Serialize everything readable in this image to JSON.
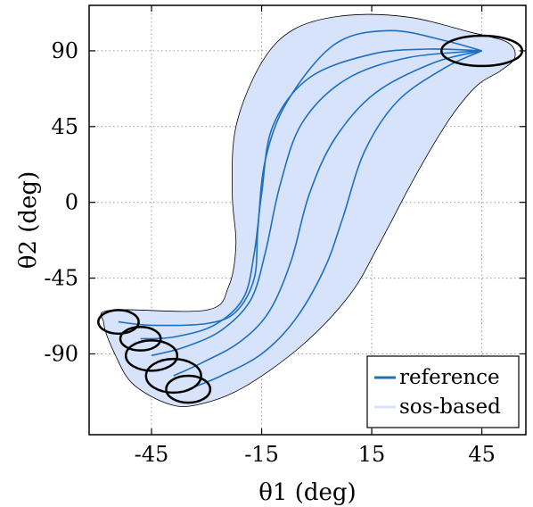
{
  "chart_data": {
    "type": "line",
    "xlabel": "θ1 (deg)",
    "ylabel": "θ2 (deg)",
    "xlim": [
      -62,
      57
    ],
    "ylim": [
      -138,
      117
    ],
    "x_ticks": [
      -45,
      -15,
      15,
      45
    ],
    "y_ticks": [
      90,
      45,
      0,
      -45,
      -90
    ],
    "x_tick_labels": [
      "-45",
      "-15",
      "15",
      "45"
    ],
    "y_tick_labels": [
      "90",
      "45",
      "0",
      "-45",
      "-90"
    ],
    "grid": true,
    "legend_position": "bottom-right",
    "colors": {
      "reference": "#1f6fbf",
      "band_fill": "#d6e3fb",
      "band_edge": "#000000",
      "circle": "#000000",
      "grid": "#9a9a9a"
    },
    "legend": [
      "reference",
      "sos-based"
    ],
    "series": [
      {
        "name": "reference",
        "points": [
          [
            -54,
            -71
          ],
          [
            -45,
            -73
          ],
          [
            -30,
            -72
          ],
          [
            -22,
            -65
          ],
          [
            -17,
            -45
          ],
          [
            -16,
            -15
          ],
          [
            -14,
            25
          ],
          [
            -8,
            60
          ],
          [
            5,
            94
          ],
          [
            20,
            102
          ],
          [
            35,
            96
          ],
          [
            45,
            90
          ]
        ]
      },
      {
        "name": "reference",
        "points": [
          [
            -48,
            -81
          ],
          [
            -39,
            -80
          ],
          [
            -28,
            -73
          ],
          [
            -20,
            -57
          ],
          [
            -17,
            -30
          ],
          [
            -15,
            5
          ],
          [
            -12,
            45
          ],
          [
            -2,
            74
          ],
          [
            15,
            88
          ],
          [
            30,
            91
          ],
          [
            45,
            90
          ]
        ]
      },
      {
        "name": "reference",
        "points": [
          [
            -45,
            -91
          ],
          [
            -36,
            -86
          ],
          [
            -26,
            -76
          ],
          [
            -18,
            -58
          ],
          [
            -14,
            -30
          ],
          [
            -10,
            10
          ],
          [
            -4,
            47
          ],
          [
            8,
            73
          ],
          [
            25,
            86
          ],
          [
            45,
            90
          ]
        ]
      },
      {
        "name": "reference",
        "points": [
          [
            -39,
            -103
          ],
          [
            -31,
            -95
          ],
          [
            -21,
            -83
          ],
          [
            -13,
            -65
          ],
          [
            -7,
            -35
          ],
          [
            -2,
            5
          ],
          [
            5,
            38
          ],
          [
            16,
            65
          ],
          [
            32,
            83
          ],
          [
            45,
            90
          ]
        ]
      },
      {
        "name": "reference",
        "points": [
          [
            -35,
            -111
          ],
          [
            -26,
            -103
          ],
          [
            -15,
            -90
          ],
          [
            -6,
            -70
          ],
          [
            2,
            -40
          ],
          [
            7,
            -10
          ],
          [
            13,
            30
          ],
          [
            22,
            60
          ],
          [
            35,
            80
          ],
          [
            45,
            90
          ]
        ]
      }
    ],
    "band": {
      "name": "sos-based",
      "outline": [
        [
          -56,
          -64
        ],
        [
          -30,
          -64
        ],
        [
          -24,
          -50
        ],
        [
          -22,
          -25
        ],
        [
          -23,
          5
        ],
        [
          -22,
          45
        ],
        [
          -15,
          83
        ],
        [
          -6,
          103
        ],
        [
          8,
          111
        ],
        [
          25,
          110
        ],
        [
          42,
          101
        ],
        [
          52,
          95
        ],
        [
          54,
          86
        ],
        [
          50,
          78
        ],
        [
          44,
          70
        ],
        [
          38,
          55
        ],
        [
          32,
          35
        ],
        [
          25,
          8
        ],
        [
          17,
          -25
        ],
        [
          9,
          -55
        ],
        [
          -4,
          -85
        ],
        [
          -20,
          -110
        ],
        [
          -32,
          -120
        ],
        [
          -40,
          -120
        ],
        [
          -50,
          -108
        ],
        [
          -55,
          -90
        ],
        [
          -58,
          -72
        ],
        [
          -56,
          -64
        ]
      ]
    },
    "ellipses": [
      {
        "cx": -54,
        "cy": -71,
        "rx": 5.5,
        "ry": 7
      },
      {
        "cx": -48,
        "cy": -81,
        "rx": 5.5,
        "ry": 7
      },
      {
        "cx": -45,
        "cy": -91,
        "rx": 7,
        "ry": 9
      },
      {
        "cx": -39,
        "cy": -103,
        "rx": 7.5,
        "ry": 10
      },
      {
        "cx": -35,
        "cy": -111,
        "rx": 6,
        "ry": 8
      },
      {
        "cx": 45,
        "cy": 90,
        "rx": 11,
        "ry": 9
      }
    ]
  }
}
